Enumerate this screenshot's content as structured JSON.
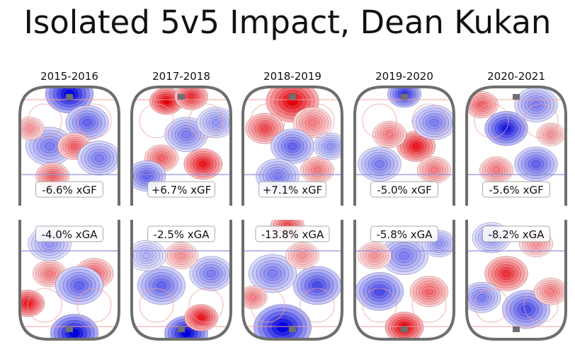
{
  "title": "Isolated 5v5 Impact, Dean Kukan",
  "chart_data": {
    "type": "heatmap",
    "title": "Isolated 5v5 Impact, Dean Kukan",
    "panels": [
      {
        "season": "2015-2016",
        "xgf": "-6.6% xGF",
        "xga": "-4.0% xGA",
        "offense_blobs": [
          {
            "x": 0.5,
            "y": 0.06,
            "v": -1.0,
            "r": 0.2
          },
          {
            "x": 0.68,
            "y": 0.3,
            "v": -0.6,
            "r": 0.18
          },
          {
            "x": 0.3,
            "y": 0.5,
            "v": -0.5,
            "r": 0.2
          },
          {
            "x": 0.55,
            "y": 0.5,
            "v": 0.6,
            "r": 0.14
          },
          {
            "x": 0.33,
            "y": 0.75,
            "v": 0.6,
            "r": 0.14
          },
          {
            "x": 0.8,
            "y": 0.6,
            "v": -0.5,
            "r": 0.18
          },
          {
            "x": 0.1,
            "y": 0.35,
            "v": 0.4,
            "r": 0.12
          }
        ],
        "defense_blobs": [
          {
            "x": 0.55,
            "y": 0.95,
            "v": -1.0,
            "r": 0.2
          },
          {
            "x": 0.08,
            "y": 0.7,
            "v": 0.9,
            "r": 0.14
          },
          {
            "x": 0.75,
            "y": 0.45,
            "v": 0.6,
            "r": 0.16
          },
          {
            "x": 0.3,
            "y": 0.45,
            "v": 0.5,
            "r": 0.14
          },
          {
            "x": 0.6,
            "y": 0.55,
            "v": -0.6,
            "r": 0.2
          },
          {
            "x": 0.3,
            "y": 0.2,
            "v": -0.4,
            "r": 0.18
          }
        ]
      },
      {
        "season": "2017-2018",
        "xgf": "+6.7% xGF",
        "xga": "-2.5% xGA",
        "offense_blobs": [
          {
            "x": 0.35,
            "y": 0.12,
            "v": 1.0,
            "r": 0.14
          },
          {
            "x": 0.6,
            "y": 0.08,
            "v": 0.8,
            "r": 0.14
          },
          {
            "x": 0.72,
            "y": 0.65,
            "v": 0.9,
            "r": 0.16
          },
          {
            "x": 0.3,
            "y": 0.6,
            "v": 0.6,
            "r": 0.14
          },
          {
            "x": 0.15,
            "y": 0.75,
            "v": -0.6,
            "r": 0.16
          },
          {
            "x": 0.55,
            "y": 0.4,
            "v": -0.5,
            "r": 0.18
          },
          {
            "x": 0.85,
            "y": 0.3,
            "v": -0.4,
            "r": 0.16
          }
        ],
        "defense_blobs": [
          {
            "x": 0.55,
            "y": 0.95,
            "v": -1.0,
            "r": 0.18
          },
          {
            "x": 0.7,
            "y": 0.82,
            "v": 0.9,
            "r": 0.14
          },
          {
            "x": 0.3,
            "y": 0.55,
            "v": -0.6,
            "r": 0.2
          },
          {
            "x": 0.8,
            "y": 0.45,
            "v": -0.5,
            "r": 0.18
          },
          {
            "x": 0.5,
            "y": 0.3,
            "v": 0.4,
            "r": 0.14
          },
          {
            "x": 0.15,
            "y": 0.3,
            "v": -0.3,
            "r": 0.16
          }
        ]
      },
      {
        "season": "2018-2019",
        "xgf": "+7.1% xGF",
        "xga": "-13.8% xGA",
        "offense_blobs": [
          {
            "x": 0.5,
            "y": 0.12,
            "v": 1.0,
            "r": 0.22
          },
          {
            "x": 0.22,
            "y": 0.35,
            "v": 0.7,
            "r": 0.16
          },
          {
            "x": 0.7,
            "y": 0.3,
            "v": 0.5,
            "r": 0.16
          },
          {
            "x": 0.5,
            "y": 0.5,
            "v": -0.6,
            "r": 0.18
          },
          {
            "x": 0.35,
            "y": 0.75,
            "v": -0.5,
            "r": 0.18
          },
          {
            "x": 0.75,
            "y": 0.7,
            "v": 0.5,
            "r": 0.14
          },
          {
            "x": 0.88,
            "y": 0.5,
            "v": -0.4,
            "r": 0.14
          }
        ],
        "defense_blobs": [
          {
            "x": 0.4,
            "y": 0.9,
            "v": -1.0,
            "r": 0.24
          },
          {
            "x": 0.75,
            "y": 0.55,
            "v": -0.7,
            "r": 0.2
          },
          {
            "x": 0.3,
            "y": 0.45,
            "v": -0.5,
            "r": 0.2
          },
          {
            "x": 0.45,
            "y": 0.05,
            "v": 0.7,
            "r": 0.14
          },
          {
            "x": 0.1,
            "y": 0.65,
            "v": 0.5,
            "r": 0.12
          },
          {
            "x": 0.6,
            "y": 0.3,
            "v": 0.4,
            "r": 0.14
          }
        ]
      },
      {
        "season": "2019-2020",
        "xgf": "-5.0% xGF",
        "xga": "-5.8% xGA",
        "offense_blobs": [
          {
            "x": 0.5,
            "y": 0.06,
            "v": -0.8,
            "r": 0.14
          },
          {
            "x": 0.62,
            "y": 0.5,
            "v": 0.9,
            "r": 0.16
          },
          {
            "x": 0.35,
            "y": 0.4,
            "v": 0.5,
            "r": 0.14
          },
          {
            "x": 0.25,
            "y": 0.65,
            "v": -0.5,
            "r": 0.18
          },
          {
            "x": 0.8,
            "y": 0.3,
            "v": -0.5,
            "r": 0.18
          },
          {
            "x": 0.8,
            "y": 0.7,
            "v": 0.5,
            "r": 0.14
          }
        ],
        "defense_blobs": [
          {
            "x": 0.5,
            "y": 0.9,
            "v": 1.0,
            "r": 0.16
          },
          {
            "x": 0.25,
            "y": 0.6,
            "v": -0.7,
            "r": 0.2
          },
          {
            "x": 0.75,
            "y": 0.6,
            "v": 0.6,
            "r": 0.16
          },
          {
            "x": 0.5,
            "y": 0.3,
            "v": -0.5,
            "r": 0.2
          },
          {
            "x": 0.2,
            "y": 0.3,
            "v": 0.4,
            "r": 0.14
          },
          {
            "x": 0.85,
            "y": 0.2,
            "v": -0.4,
            "r": 0.14
          }
        ]
      },
      {
        "season": "2020-2021",
        "xgf": "-5.6% xGF",
        "xga": "-8.2% xGA",
        "offense_blobs": [
          {
            "x": 0.4,
            "y": 0.35,
            "v": -0.9,
            "r": 0.18
          },
          {
            "x": 0.15,
            "y": 0.15,
            "v": 0.6,
            "r": 0.14
          },
          {
            "x": 0.7,
            "y": 0.15,
            "v": -0.5,
            "r": 0.18
          },
          {
            "x": 0.3,
            "y": 0.7,
            "v": 0.5,
            "r": 0.14
          },
          {
            "x": 0.7,
            "y": 0.65,
            "v": -0.6,
            "r": 0.18
          },
          {
            "x": 0.85,
            "y": 0.4,
            "v": 0.4,
            "r": 0.12
          }
        ],
        "defense_blobs": [
          {
            "x": 0.4,
            "y": 0.45,
            "v": 0.8,
            "r": 0.18
          },
          {
            "x": 0.15,
            "y": 0.65,
            "v": -0.5,
            "r": 0.16
          },
          {
            "x": 0.6,
            "y": 0.75,
            "v": -0.7,
            "r": 0.2
          },
          {
            "x": 0.85,
            "y": 0.6,
            "v": 0.5,
            "r": 0.14
          },
          {
            "x": 0.25,
            "y": 0.15,
            "v": -0.4,
            "r": 0.16
          },
          {
            "x": 0.7,
            "y": 0.2,
            "v": 0.4,
            "r": 0.14
          }
        ]
      }
    ],
    "colors": {
      "positive": "#e8000a",
      "negative": "#0000e0",
      "board": "#6e6e6e",
      "blue_line": "#9090e0",
      "red_line": "#f0a0a0"
    }
  }
}
